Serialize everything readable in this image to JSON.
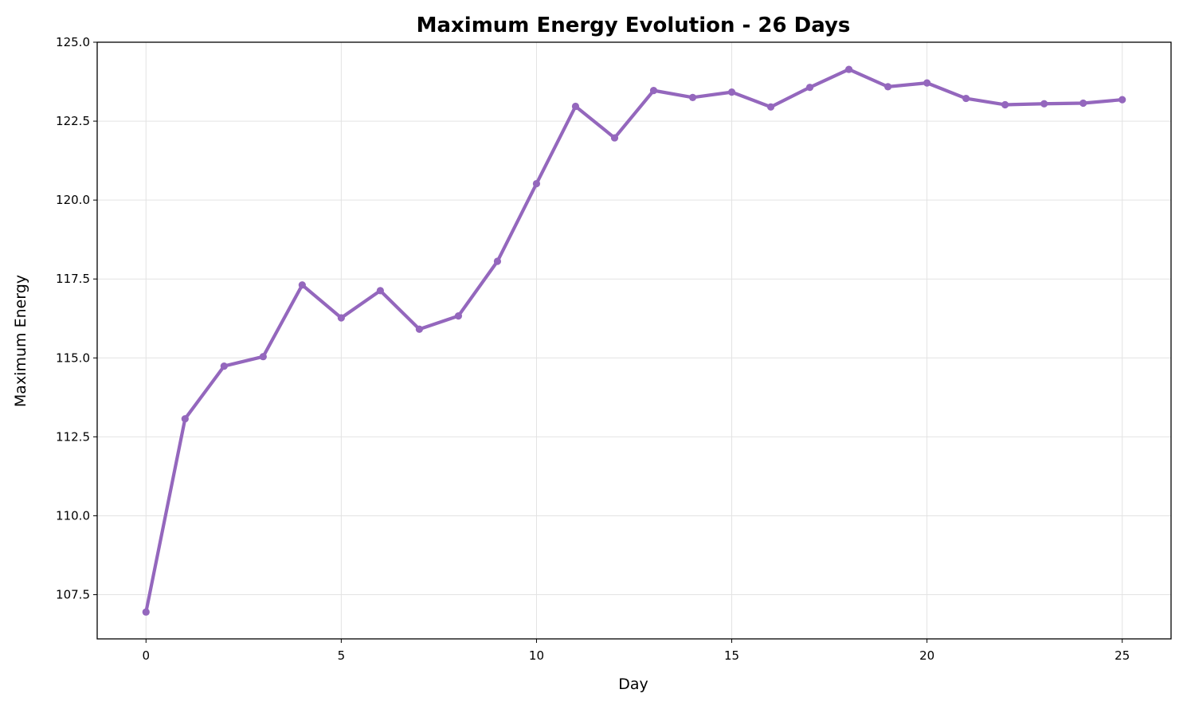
{
  "chart_data": {
    "type": "line",
    "title": "Maximum Energy Evolution - 26 Days",
    "xlabel": "Day",
    "ylabel": "Maximum Energy",
    "xlim": [
      -1.25,
      26.25
    ],
    "ylim": [
      106.1,
      125.0
    ],
    "xticks": [
      0,
      5,
      10,
      15,
      20,
      25
    ],
    "yticks": [
      "107.5",
      "110.0",
      "112.5",
      "115.0",
      "117.5",
      "120.0",
      "122.5",
      "125.0"
    ],
    "grid": true,
    "legend": "none",
    "series": [
      {
        "color": "#9467bd",
        "x": [
          0,
          1,
          2,
          3,
          4,
          5,
          6,
          7,
          8,
          9,
          10,
          11,
          12,
          13,
          14,
          15,
          16,
          17,
          18,
          19,
          20,
          21,
          22,
          23,
          24,
          25
        ],
        "values": [
          106.95,
          113.07,
          114.74,
          115.04,
          117.31,
          116.27,
          117.13,
          115.91,
          116.33,
          118.06,
          120.52,
          122.97,
          121.97,
          123.47,
          123.25,
          123.42,
          122.95,
          123.57,
          124.14,
          123.59,
          123.71,
          123.22,
          123.02,
          123.05,
          123.07,
          123.18
        ]
      }
    ]
  }
}
